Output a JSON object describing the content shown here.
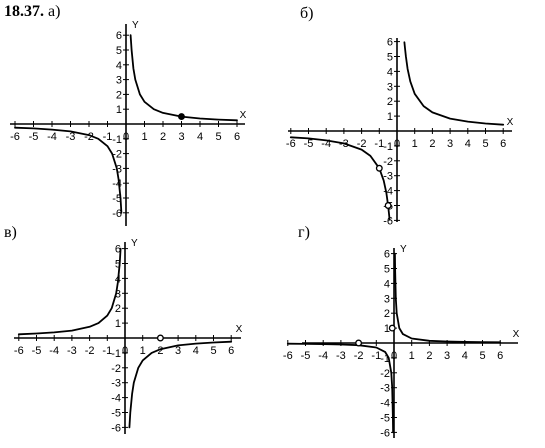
{
  "problem": {
    "number": "18.37.",
    "first_label": "а)"
  },
  "chart_data": [
    {
      "id": "a",
      "label": "",
      "type": "line",
      "xlabel": "X",
      "ylabel": "Y",
      "xlim": [
        -6,
        6
      ],
      "ylim": [
        -6,
        6
      ],
      "x_ticks": [
        "-6",
        "-5",
        "-4",
        "-3",
        "-2",
        "-1",
        "0",
        "1",
        "2",
        "3",
        "4",
        "5",
        "6"
      ],
      "y_ticks_pos": [
        "1",
        "2",
        "3",
        "4",
        "5",
        "6"
      ],
      "y_ticks_neg": [
        "-1",
        "-2",
        "-3",
        "-4",
        "-5",
        "-6"
      ],
      "function": "y = 1.5/x",
      "series": [
        {
          "x": [
            -6,
            -5,
            -4,
            -3,
            -2,
            -1.5,
            -1,
            -0.75,
            -0.5,
            -0.4,
            -0.3,
            -0.25
          ],
          "y": [
            -0.25,
            -0.3,
            -0.375,
            -0.5,
            -0.75,
            -1,
            -1.5,
            -2,
            -3,
            -3.75,
            -5,
            -6
          ]
        },
        {
          "x": [
            0.25,
            0.3,
            0.4,
            0.5,
            0.75,
            1,
            1.5,
            2,
            3,
            4,
            5,
            6
          ],
          "y": [
            6,
            5,
            3.75,
            3,
            2,
            1.5,
            1,
            0.75,
            0.5,
            0.375,
            0.3,
            0.25
          ]
        }
      ],
      "marked_point": {
        "x": 3,
        "y": 0.5,
        "filled": true
      }
    },
    {
      "id": "b",
      "label": "б)",
      "type": "line",
      "xlabel": "X",
      "ylabel": "",
      "xlim": [
        -6,
        6
      ],
      "ylim": [
        -6,
        6
      ],
      "x_ticks": [
        "-6",
        "-5",
        "-4",
        "-3",
        "-2",
        "-1",
        "0",
        "1",
        "2",
        "3",
        "4",
        "5",
        "6"
      ],
      "y_ticks_pos": [
        "1",
        "2",
        "3",
        "4",
        "5",
        "6"
      ],
      "y_ticks_neg": [
        "-1",
        "-2",
        "-3",
        "-4",
        "-5",
        "-6"
      ],
      "function": "y = 2.5/x",
      "series": [
        {
          "x": [
            -6,
            -5,
            -4,
            -3,
            -2,
            -1.5,
            -1,
            -0.75,
            -0.6,
            -0.5,
            -0.45,
            -0.42
          ],
          "y": [
            -0.42,
            -0.5,
            -0.63,
            -0.83,
            -1.25,
            -1.67,
            -2.5,
            -3.33,
            -4.17,
            -5,
            -5.56,
            -5.95
          ]
        },
        {
          "x": [
            0.42,
            0.45,
            0.5,
            0.6,
            0.75,
            1,
            1.5,
            2,
            3,
            4,
            5,
            6
          ],
          "y": [
            5.95,
            5.56,
            5,
            4.17,
            3.33,
            2.5,
            1.67,
            1.25,
            0.83,
            0.63,
            0.5,
            0.42
          ]
        }
      ],
      "marked_points": [
        {
          "x": -1,
          "y": -2.5,
          "filled": false
        },
        {
          "x": -0.5,
          "y": -5,
          "filled": false
        }
      ]
    },
    {
      "id": "v",
      "label": "в)",
      "type": "line",
      "xlabel": "X",
      "ylabel": "Y",
      "xlim": [
        -6,
        6
      ],
      "ylim": [
        -6,
        6
      ],
      "x_ticks": [
        "-6",
        "-5",
        "-4",
        "-3",
        "-2",
        "-1",
        "0",
        "1",
        "2",
        "3",
        "4",
        "5",
        "6"
      ],
      "y_ticks_pos": [
        "1",
        "2",
        "3",
        "4",
        "5",
        "6"
      ],
      "y_ticks_neg": [
        "-1",
        "-2",
        "-3",
        "-4",
        "-5",
        "-6"
      ],
      "function": "y = -1.5/x",
      "series": [
        {
          "x": [
            -6,
            -5,
            -4,
            -3,
            -2,
            -1.5,
            -1,
            -0.75,
            -0.5,
            -0.4,
            -0.3,
            -0.25
          ],
          "y": [
            0.25,
            0.3,
            0.375,
            0.5,
            0.75,
            1,
            1.5,
            2,
            3,
            3.75,
            5,
            6
          ]
        },
        {
          "x": [
            0.25,
            0.3,
            0.4,
            0.5,
            0.75,
            1,
            1.5,
            2,
            3,
            4,
            5,
            6
          ],
          "y": [
            -6,
            -5,
            -3.75,
            -3,
            -2,
            -1.5,
            -1,
            -0.75,
            -0.5,
            -0.375,
            -0.3,
            -0.25
          ]
        }
      ],
      "marked_point": {
        "x": 2,
        "y": 0,
        "filled": false
      }
    },
    {
      "id": "g",
      "label": "г)",
      "type": "line",
      "xlabel": "X",
      "ylabel": "Y",
      "xlim": [
        -6,
        6
      ],
      "ylim": [
        -6,
        6
      ],
      "x_ticks": [
        "-6",
        "-5",
        "-4",
        "-3",
        "-2",
        "-1",
        "0",
        "1",
        "2",
        "3",
        "4",
        "5",
        "6"
      ],
      "y_ticks_pos": [
        "1",
        "2",
        "3",
        "4",
        "5",
        "6"
      ],
      "y_ticks_neg": [
        "-1",
        "-2",
        "-3",
        "-4",
        "-5",
        "-6"
      ],
      "function": "y = 0.3/x",
      "series": [
        {
          "x": [
            -6,
            -5,
            -4,
            -3,
            -2,
            -1,
            -0.5,
            -0.3,
            -0.15,
            -0.1,
            -0.06,
            -0.05
          ],
          "y": [
            -0.05,
            -0.06,
            -0.075,
            -0.1,
            -0.15,
            -0.3,
            -0.6,
            -1,
            -2,
            -3,
            -5,
            -6
          ]
        },
        {
          "x": [
            0.05,
            0.06,
            0.1,
            0.15,
            0.3,
            0.5,
            1,
            2,
            3,
            4,
            5,
            6
          ],
          "y": [
            6,
            5,
            3,
            2,
            1,
            0.6,
            0.3,
            0.15,
            0.1,
            0.075,
            0.06,
            0.05
          ]
        }
      ],
      "marked_points": [
        {
          "x": -2,
          "y": 0,
          "filled": false
        },
        {
          "x": -0.1,
          "y": 1,
          "filled": false
        }
      ]
    }
  ]
}
